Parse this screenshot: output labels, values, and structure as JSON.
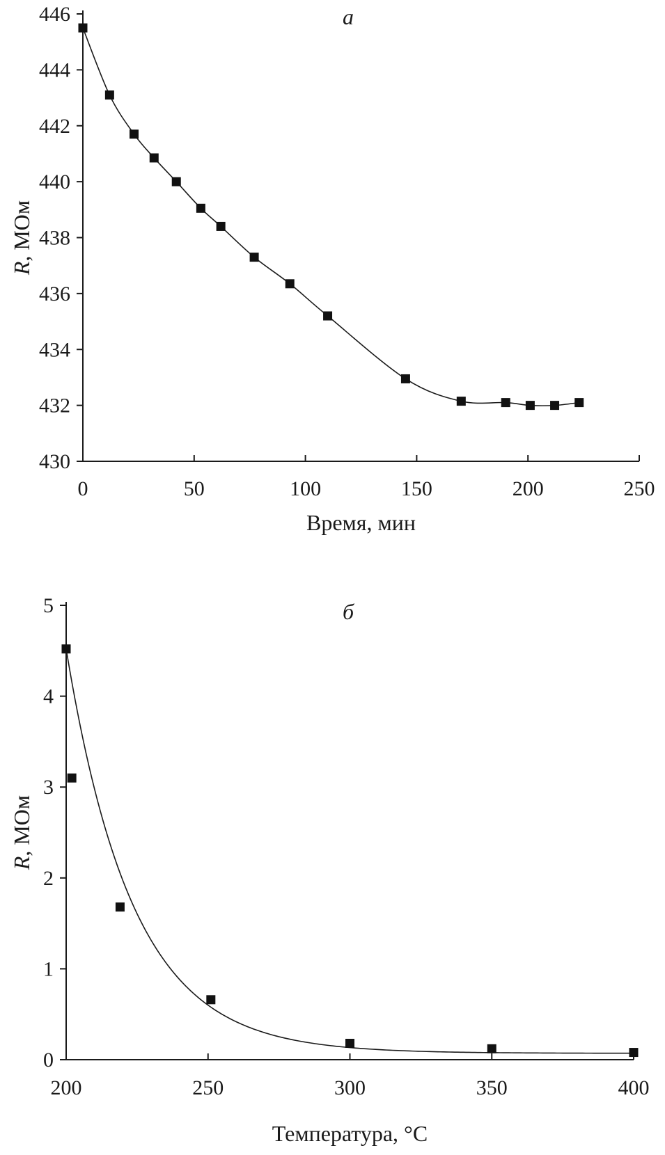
{
  "chart_data": [
    {
      "type": "scatter",
      "panel_label": "a",
      "xlabel": "Время, мин",
      "ylabel_italic": "R",
      "ylabel_rest": ", МОм",
      "xlim": [
        0,
        250
      ],
      "ylim": [
        430,
        446
      ],
      "xticks": [
        0,
        50,
        100,
        150,
        200,
        250
      ],
      "yticks": [
        430,
        432,
        434,
        436,
        438,
        440,
        442,
        444,
        446
      ],
      "grid": false,
      "series": [
        {
          "x": [
            0,
            12,
            23,
            32,
            42,
            53,
            62,
            77,
            93,
            110,
            145,
            170,
            190,
            201,
            212,
            223
          ],
          "y": [
            445.5,
            443.1,
            441.7,
            440.85,
            440.0,
            439.05,
            438.4,
            437.3,
            436.35,
            435.2,
            432.95,
            432.15,
            432.1,
            432.0,
            432.0,
            432.1
          ],
          "marker": "square",
          "fit_line": true
        }
      ]
    },
    {
      "type": "scatter",
      "panel_label": "б",
      "xlabel": "Температура, °C",
      "ylabel_italic": "R",
      "ylabel_rest": ", МОм",
      "xlim": [
        200,
        400
      ],
      "ylim": [
        0,
        5
      ],
      "xticks": [
        200,
        250,
        300,
        350,
        400
      ],
      "yticks": [
        0,
        1,
        2,
        3,
        4,
        5
      ],
      "grid": false,
      "series": [
        {
          "x": [
            200,
            202,
            219,
            251,
            300,
            350,
            400
          ],
          "y": [
            4.52,
            3.1,
            1.68,
            0.66,
            0.18,
            0.12,
            0.08
          ],
          "marker": "square",
          "fit_line": true
        }
      ]
    }
  ]
}
